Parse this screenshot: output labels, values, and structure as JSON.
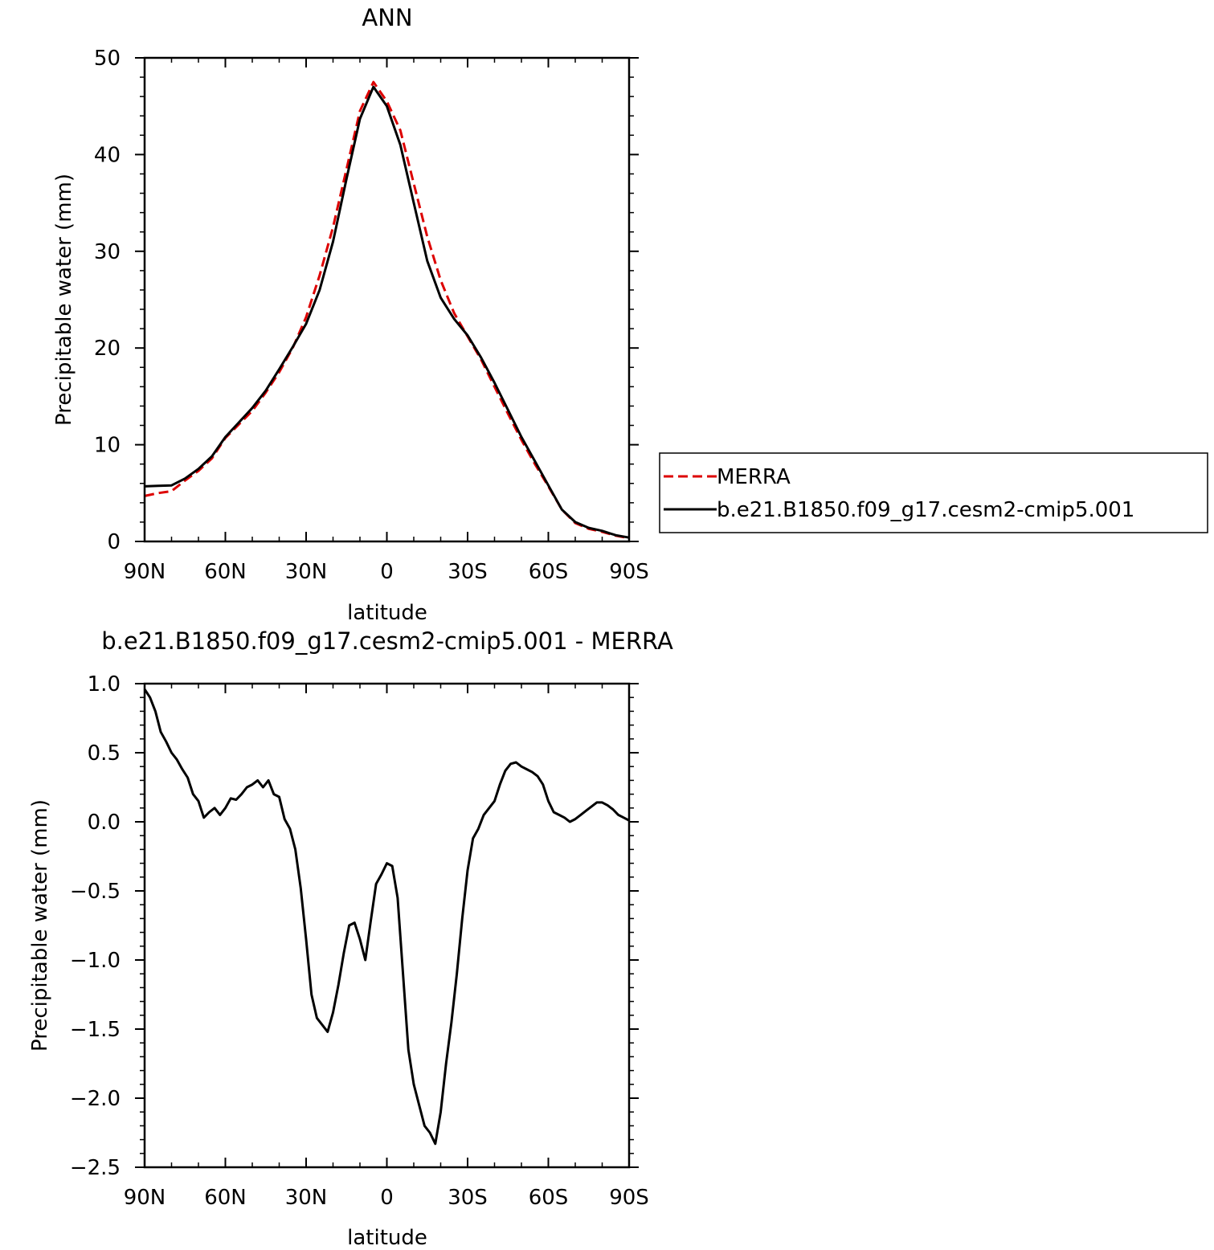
{
  "chart_data": [
    {
      "type": "line",
      "title": "ANN",
      "xlabel": "latitude",
      "ylabel": "Precipitable water (mm)",
      "xlim": [
        90,
        -90
      ],
      "ylim": [
        0,
        50
      ],
      "x_tick_values": [
        90,
        60,
        30,
        0,
        -30,
        -60,
        -90
      ],
      "x_tick_labels": [
        "90N",
        "60N",
        "30N",
        "0",
        "30S",
        "60S",
        "90S"
      ],
      "y_tick_values": [
        0,
        10,
        20,
        30,
        40,
        50
      ],
      "y_tick_labels": [
        "0",
        "10",
        "20",
        "30",
        "40",
        "50"
      ],
      "grid": false,
      "legend": "right",
      "x": [
        90,
        85,
        80,
        75,
        70,
        65,
        60,
        55,
        50,
        45,
        40,
        35,
        30,
        25,
        20,
        15,
        10,
        5,
        0,
        -5,
        -10,
        -15,
        -20,
        -25,
        -30,
        -35,
        -40,
        -45,
        -50,
        -55,
        -60,
        -65,
        -70,
        -75,
        -80,
        -85,
        -90
      ],
      "series": [
        {
          "name": "MERRA",
          "color": "#dd0000",
          "dash": "dashed",
          "values": [
            4.7,
            5.0,
            5.2,
            6.3,
            7.3,
            8.6,
            10.7,
            12.1,
            13.5,
            15.4,
            17.5,
            20.0,
            23.2,
            27.5,
            32.5,
            38.5,
            44.5,
            47.5,
            45.5,
            42.5,
            37.0,
            31.5,
            27.0,
            23.6,
            21.2,
            18.8,
            16.0,
            13.2,
            10.5,
            8.0,
            5.7,
            3.3,
            1.9,
            1.3,
            1.0,
            0.6,
            0.35
          ]
        },
        {
          "name": "b.e21.B1850.f09_g17.cesm2-cmip5.001",
          "color": "#000000",
          "dash": "solid",
          "values": [
            5.7,
            5.75,
            5.8,
            6.5,
            7.5,
            8.8,
            10.8,
            12.3,
            13.8,
            15.6,
            17.8,
            20.1,
            22.5,
            26.0,
            31.0,
            37.5,
            43.7,
            47.0,
            45.0,
            41.0,
            35.0,
            29.0,
            25.2,
            23.0,
            21.3,
            19.0,
            16.4,
            13.6,
            10.8,
            8.3,
            5.8,
            3.3,
            2.0,
            1.4,
            1.1,
            0.65,
            0.4
          ]
        }
      ]
    },
    {
      "type": "line",
      "title": "b.e21.B1850.f09_g17.cesm2-cmip5.001 - MERRA",
      "xlabel": "latitude",
      "ylabel": "Precipitable water (mm)",
      "xlim": [
        90,
        -90
      ],
      "ylim": [
        -2.5,
        1.0
      ],
      "x_tick_values": [
        90,
        60,
        30,
        0,
        -30,
        -60,
        -90
      ],
      "x_tick_labels": [
        "90N",
        "60N",
        "30N",
        "0",
        "30S",
        "60S",
        "90S"
      ],
      "y_tick_values": [
        1.0,
        0.5,
        0.0,
        -0.5,
        -1.0,
        -1.5,
        -2.0,
        -2.5
      ],
      "y_tick_labels": [
        "1.0",
        "0.5",
        "0.0",
        "−0.5",
        "−1.0",
        "−1.5",
        "−2.0",
        "−2.5"
      ],
      "grid": false,
      "x": [
        90,
        88,
        86,
        84,
        82,
        80,
        78,
        76,
        74,
        72,
        70,
        68,
        66,
        64,
        62,
        60,
        58,
        56,
        54,
        52,
        50,
        48,
        46,
        44,
        42,
        40,
        38,
        36,
        34,
        32,
        30,
        28,
        26,
        24,
        22,
        20,
        18,
        16,
        14,
        12,
        10,
        8,
        6,
        4,
        2,
        0,
        -2,
        -4,
        -6,
        -8,
        -10,
        -12,
        -14,
        -16,
        -18,
        -20,
        -22,
        -24,
        -26,
        -28,
        -30,
        -32,
        -34,
        -36,
        -38,
        -40,
        -42,
        -44,
        -46,
        -48,
        -50,
        -52,
        -54,
        -56,
        -58,
        -60,
        -62,
        -64,
        -66,
        -68,
        -70,
        -72,
        -74,
        -76,
        -78,
        -80,
        -82,
        -84,
        -86,
        -88,
        -90
      ],
      "series": [
        {
          "name": "",
          "color": "#000000",
          "dash": "solid",
          "values": [
            0.96,
            0.9,
            0.8,
            0.65,
            0.58,
            0.5,
            0.45,
            0.38,
            0.32,
            0.2,
            0.15,
            0.03,
            0.07,
            0.1,
            0.05,
            0.1,
            0.17,
            0.16,
            0.2,
            0.25,
            0.27,
            0.3,
            0.25,
            0.3,
            0.2,
            0.18,
            0.02,
            -0.05,
            -0.2,
            -0.48,
            -0.85,
            -1.25,
            -1.42,
            -1.47,
            -1.52,
            -1.38,
            -1.18,
            -0.95,
            -0.75,
            -0.73,
            -0.85,
            -1.0,
            -0.72,
            -0.45,
            -0.38,
            -0.3,
            -0.32,
            -0.55,
            -1.1,
            -1.65,
            -1.9,
            -2.05,
            -2.2,
            -2.25,
            -2.33,
            -2.1,
            -1.75,
            -1.45,
            -1.1,
            -0.7,
            -0.35,
            -0.12,
            -0.05,
            0.05,
            0.1,
            0.15,
            0.27,
            0.37,
            0.42,
            0.43,
            0.4,
            0.38,
            0.36,
            0.33,
            0.27,
            0.15,
            0.07,
            0.05,
            0.03,
            0.0,
            0.02,
            0.05,
            0.08,
            0.11,
            0.14,
            0.14,
            0.12,
            0.09,
            0.05,
            0.03,
            0.01
          ]
        }
      ]
    }
  ]
}
